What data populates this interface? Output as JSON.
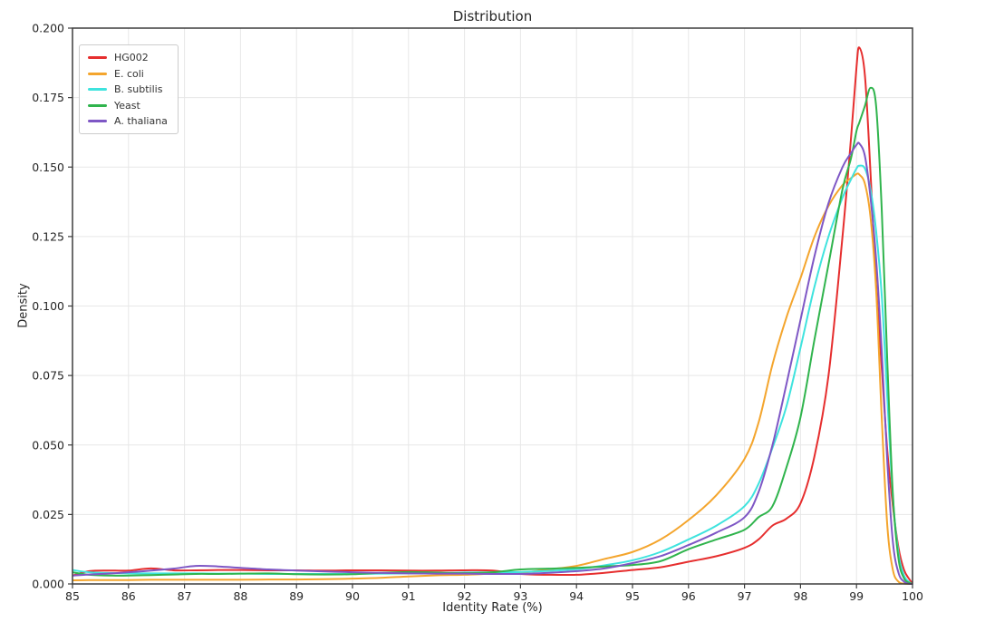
{
  "chart_data": {
    "type": "line",
    "title": "Distribution",
    "xlabel": "Identity Rate (%)",
    "ylabel": "Density",
    "xlim": [
      85,
      100
    ],
    "ylim": [
      0,
      0.2
    ],
    "grid": true,
    "legend_position": "upper-left",
    "xticks": [
      85,
      86,
      87,
      88,
      89,
      90,
      91,
      92,
      93,
      94,
      95,
      96,
      97,
      98,
      99,
      100
    ],
    "xtick_labels": [
      "85",
      "86",
      "87",
      "88",
      "89",
      "90",
      "91",
      "92",
      "93",
      "94",
      "95",
      "96",
      "97",
      "98",
      "99",
      "100"
    ],
    "yticks": [
      0,
      0.025,
      0.05,
      0.075,
      0.1,
      0.125,
      0.15,
      0.175,
      0.2
    ],
    "ytick_labels": [
      "0.000",
      "0.025",
      "0.050",
      "0.075",
      "0.100",
      "0.125",
      "0.150",
      "0.175",
      "0.200"
    ],
    "x": [
      85,
      85.3,
      85.7,
      86,
      86.4,
      86.8,
      87.2,
      87.6,
      88,
      88.5,
      89,
      89.5,
      90,
      90.5,
      91,
      91.5,
      92,
      92.5,
      93,
      93.5,
      94,
      94.5,
      95,
      95.5,
      96,
      96.5,
      97,
      97.25,
      97.5,
      97.75,
      98,
      98.25,
      98.5,
      98.75,
      98.9,
      99,
      99.05,
      99.15,
      99.25,
      99.35,
      99.45,
      99.55,
      99.65,
      99.75,
      99.85,
      99.95,
      100
    ],
    "series": [
      {
        "name": "HG002",
        "color": "#e62e2e",
        "values": [
          0.003,
          0.0046,
          0.0048,
          0.0048,
          0.0056,
          0.0049,
          0.0049,
          0.005,
          0.005,
          0.0049,
          0.0049,
          0.0048,
          0.0049,
          0.0049,
          0.0048,
          0.0048,
          0.0049,
          0.0048,
          0.0036,
          0.0033,
          0.0033,
          0.004,
          0.005,
          0.006,
          0.008,
          0.01,
          0.013,
          0.016,
          0.021,
          0.0235,
          0.029,
          0.046,
          0.075,
          0.125,
          0.16,
          0.186,
          0.193,
          0.183,
          0.148,
          0.108,
          0.078,
          0.048,
          0.028,
          0.013,
          0.005,
          0.0015,
          0.0002
        ]
      },
      {
        "name": "E. coli",
        "color": "#f4a52d",
        "values": [
          0.0013,
          0.0014,
          0.0014,
          0.0014,
          0.0015,
          0.0015,
          0.0015,
          0.0015,
          0.0015,
          0.0016,
          0.0016,
          0.0017,
          0.0019,
          0.0022,
          0.0027,
          0.0031,
          0.0033,
          0.0037,
          0.004,
          0.0052,
          0.0065,
          0.009,
          0.0115,
          0.016,
          0.023,
          0.032,
          0.045,
          0.058,
          0.079,
          0.096,
          0.11,
          0.125,
          0.136,
          0.1435,
          0.146,
          0.1475,
          0.1473,
          0.144,
          0.132,
          0.106,
          0.06,
          0.021,
          0.005,
          0.0008,
          0.0001,
          0,
          0
        ]
      },
      {
        "name": "B. subtilis",
        "color": "#3fe3de",
        "values": [
          0.005,
          0.0042,
          0.0039,
          0.0038,
          0.0038,
          0.0038,
          0.0038,
          0.0037,
          0.0037,
          0.0036,
          0.0036,
          0.0036,
          0.0036,
          0.0037,
          0.0038,
          0.0039,
          0.0041,
          0.0042,
          0.0043,
          0.0047,
          0.0053,
          0.0067,
          0.0085,
          0.0115,
          0.016,
          0.021,
          0.028,
          0.036,
          0.049,
          0.064,
          0.085,
          0.107,
          0.125,
          0.139,
          0.1455,
          0.1495,
          0.1505,
          0.1495,
          0.142,
          0.127,
          0.104,
          0.067,
          0.031,
          0.011,
          0.003,
          0.0005,
          0
        ]
      },
      {
        "name": "Yeast",
        "color": "#30b44d",
        "values": [
          0.0042,
          0.0033,
          0.003,
          0.003,
          0.0032,
          0.0034,
          0.0036,
          0.0036,
          0.0037,
          0.0038,
          0.0035,
          0.0034,
          0.0035,
          0.004,
          0.0043,
          0.0041,
          0.0039,
          0.0042,
          0.0052,
          0.0055,
          0.0058,
          0.0063,
          0.0068,
          0.0082,
          0.0125,
          0.016,
          0.0195,
          0.024,
          0.028,
          0.042,
          0.06,
          0.088,
          0.115,
          0.142,
          0.153,
          0.163,
          0.166,
          0.172,
          0.1785,
          0.172,
          0.135,
          0.08,
          0.032,
          0.009,
          0.002,
          0.0003,
          0
        ]
      },
      {
        "name": "A. thaliana",
        "color": "#7e57c5",
        "values": [
          0.003,
          0.0034,
          0.0038,
          0.0042,
          0.0048,
          0.0055,
          0.0065,
          0.0063,
          0.0058,
          0.0052,
          0.0048,
          0.0045,
          0.0042,
          0.004,
          0.0038,
          0.0037,
          0.0037,
          0.0036,
          0.0036,
          0.004,
          0.0046,
          0.0056,
          0.0075,
          0.01,
          0.014,
          0.0185,
          0.024,
          0.033,
          0.05,
          0.072,
          0.095,
          0.118,
          0.137,
          0.15,
          0.155,
          0.158,
          0.1585,
          0.154,
          0.139,
          0.117,
          0.084,
          0.044,
          0.015,
          0.004,
          0.0008,
          0,
          0
        ]
      }
    ],
    "style": {
      "grid_color": "#e7e7e7",
      "spine_color": "#3d3d3d",
      "tick_color": "#3d3d3d",
      "line_width": 2
    }
  }
}
